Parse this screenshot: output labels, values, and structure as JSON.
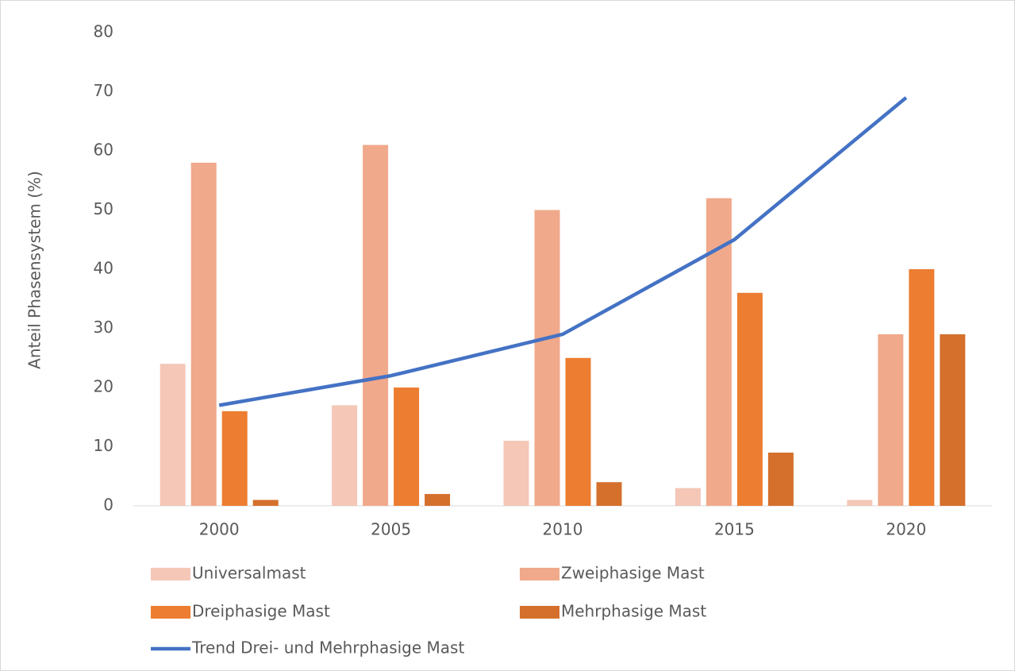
{
  "chart_data": {
    "type": "bar",
    "y_label": "Anteil Phasensystem (%)",
    "categories": [
      "2000",
      "2005",
      "2010",
      "2015",
      "2020"
    ],
    "series": [
      {
        "name": "Universalmast",
        "color": "#f4c7b7",
        "values": [
          24,
          17,
          11,
          3,
          1
        ]
      },
      {
        "name": "Zweiphasige Mast",
        "color": "#f0a98a",
        "values": [
          58,
          61,
          50,
          52,
          29
        ]
      },
      {
        "name": "Dreiphasige Mast",
        "color": "#ed7d31",
        "values": [
          16,
          20,
          25,
          36,
          40
        ]
      },
      {
        "name": "Mehrphasige Mast",
        "color": "#d4702c",
        "values": [
          1,
          2,
          4,
          9,
          29
        ]
      },
      {
        "name": "Trend Drei- und Mehrphasige Mast",
        "color": "#4472c4",
        "type": "line",
        "values": [
          17,
          22,
          29,
          45,
          69
        ]
      }
    ],
    "ylim": [
      0,
      80
    ],
    "yticks": [
      0,
      10,
      20,
      30,
      40,
      50,
      60,
      70,
      80
    ],
    "grid": false
  }
}
